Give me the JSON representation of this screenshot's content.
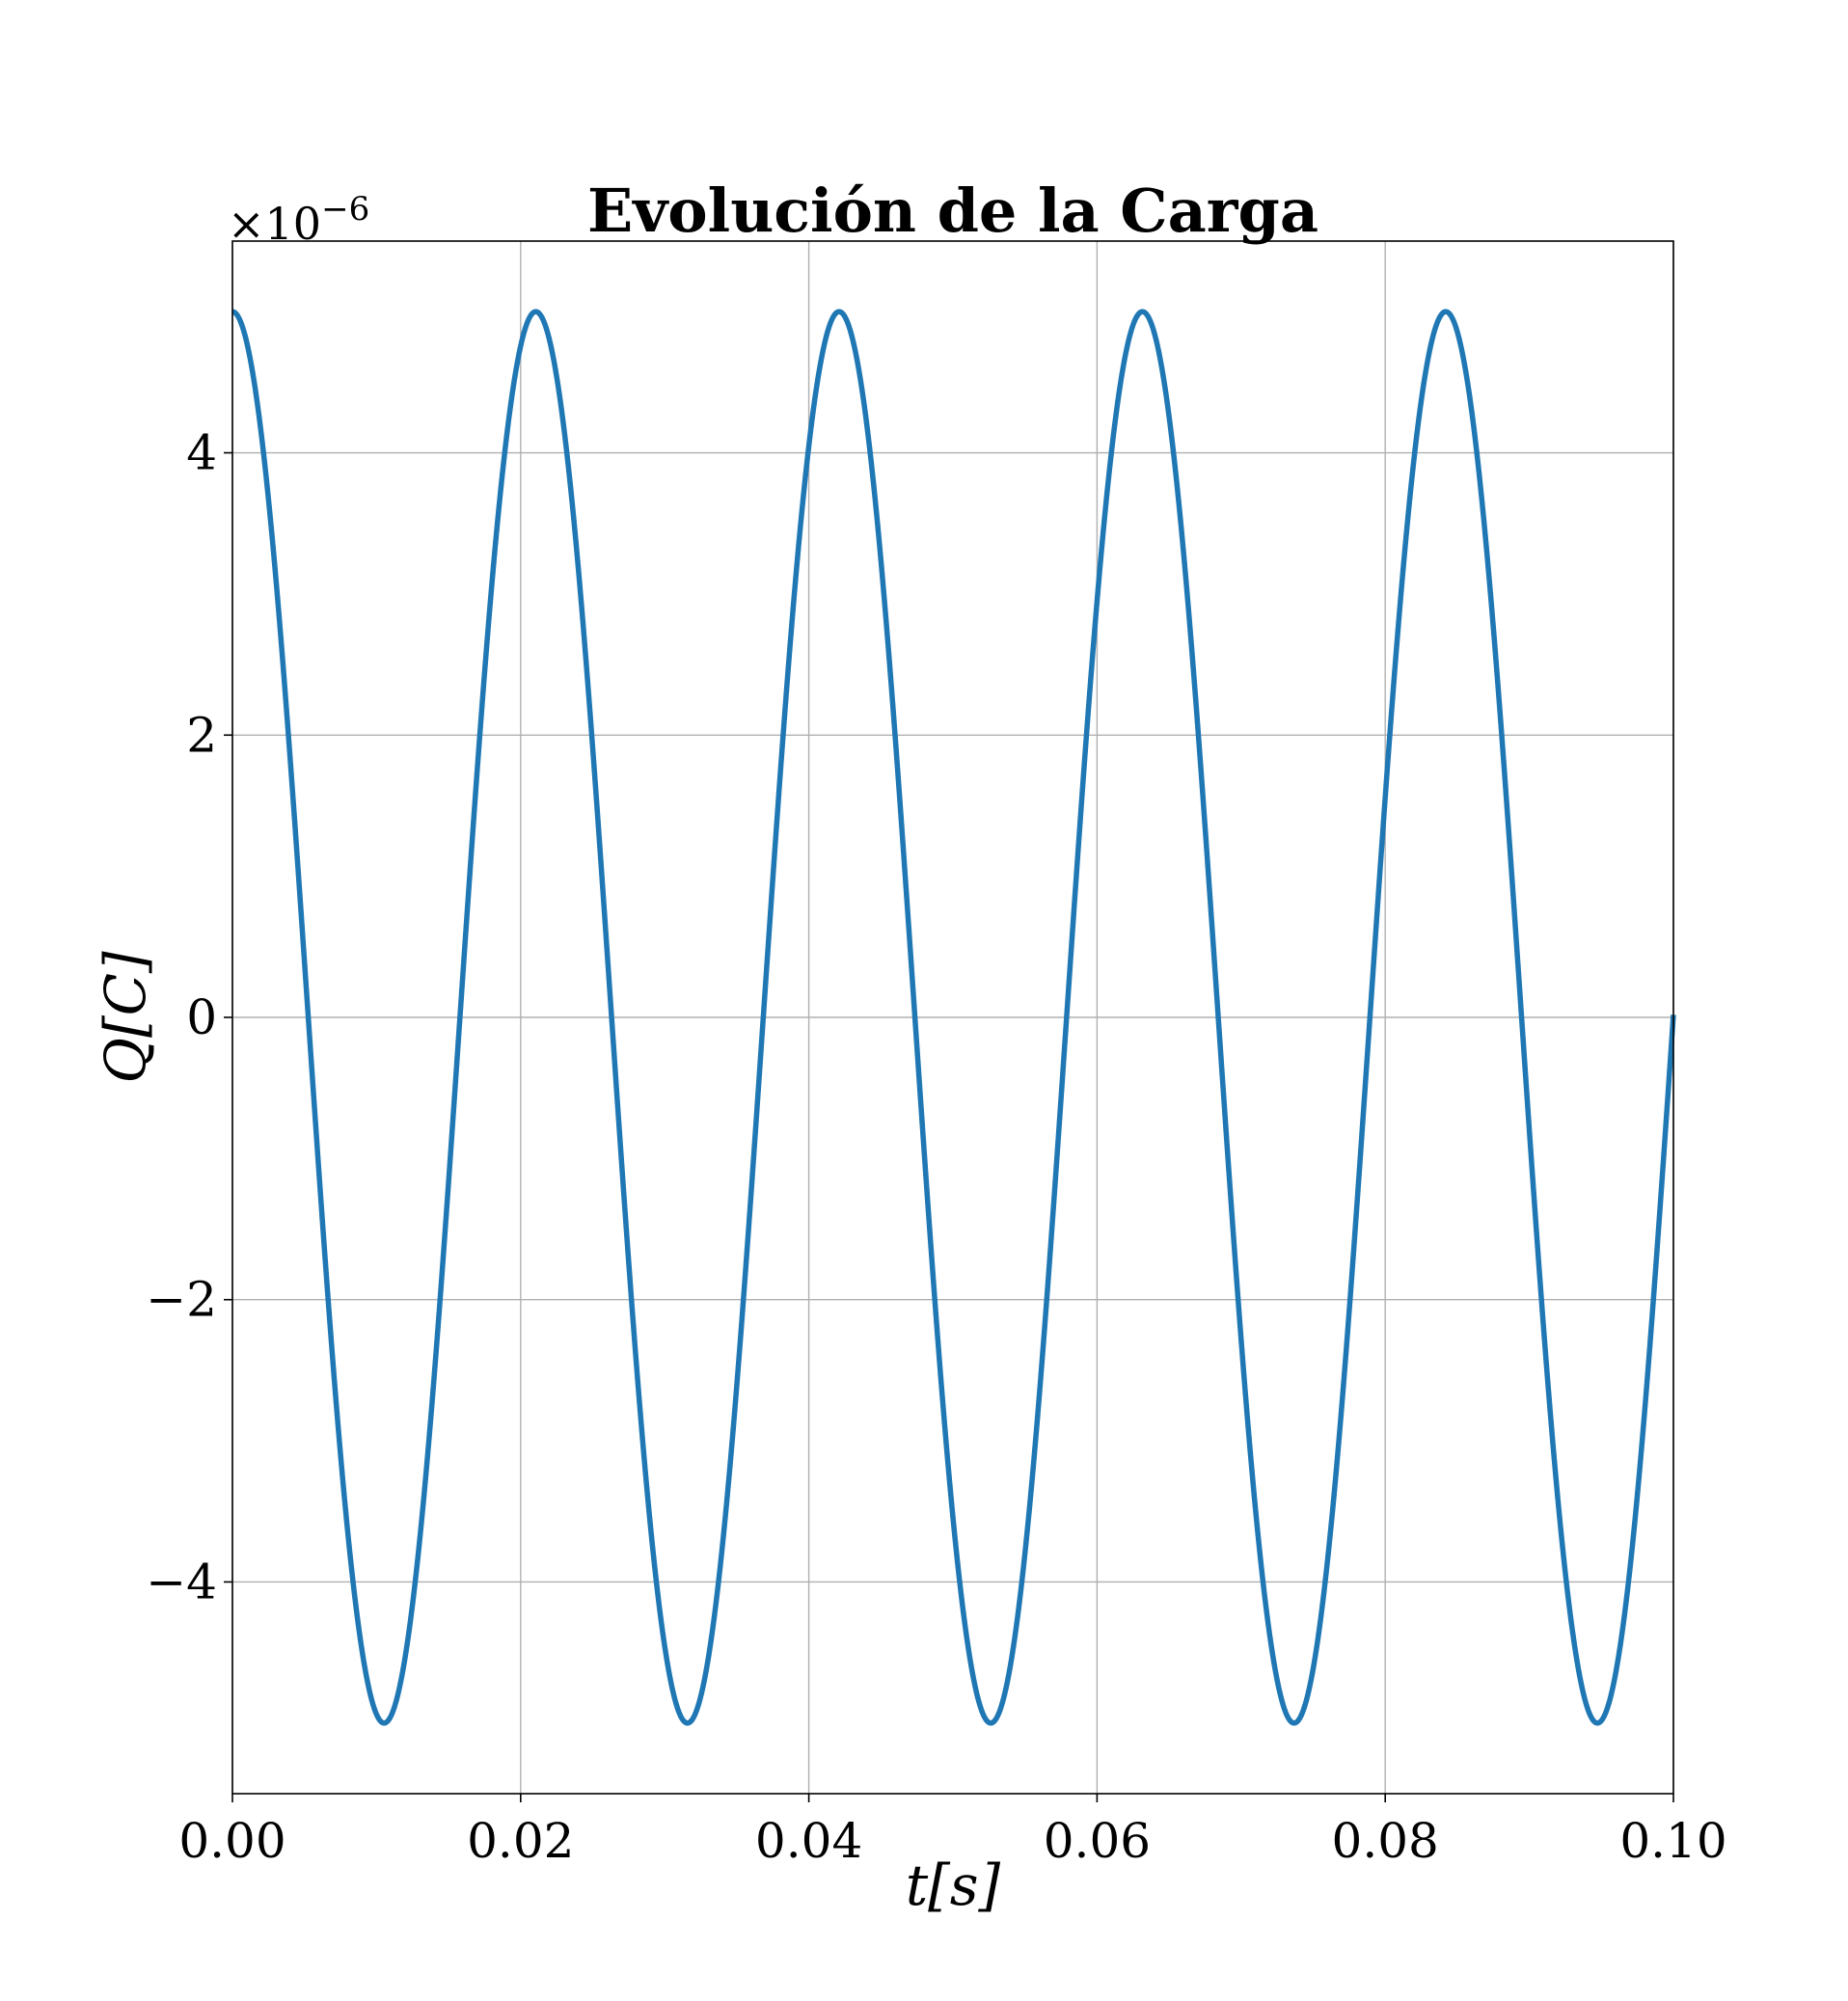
{
  "chart_data": {
    "type": "line",
    "title": "Evolución de la Carga",
    "xlabel": "t[s]",
    "ylabel": "Q[C]",
    "y_multiplier": "×10",
    "y_multiplier_exponent": "−6",
    "xlim": [
      0.0,
      0.1
    ],
    "ylim": [
      -5.5,
      5.5
    ],
    "grid": true,
    "x_ticks": [
      0.0,
      0.02,
      0.04,
      0.06,
      0.08,
      0.1
    ],
    "x_tick_labels": [
      "0.00",
      "0.02",
      "0.04",
      "0.06",
      "0.08",
      "0.10"
    ],
    "y_ticks": [
      -4,
      -2,
      0,
      2,
      4
    ],
    "y_tick_labels": [
      "−4",
      "−2",
      "0",
      "2",
      "4"
    ],
    "line_color": "#1f77b4",
    "series": [
      {
        "function": "cosine",
        "amplitude": 5.0,
        "period": 0.02105,
        "x_start": 0.0,
        "x_end": 0.1,
        "x": [
          0.0,
          0.01053,
          0.02105,
          0.03158,
          0.04211,
          0.05263,
          0.06316,
          0.07368,
          0.08421,
          0.09474,
          0.1
        ],
        "y": [
          5.0,
          -5.0,
          5.0,
          -5.0,
          5.0,
          -5.0,
          5.0,
          -5.0,
          5.0,
          -5.0,
          -0.12
        ]
      }
    ]
  }
}
